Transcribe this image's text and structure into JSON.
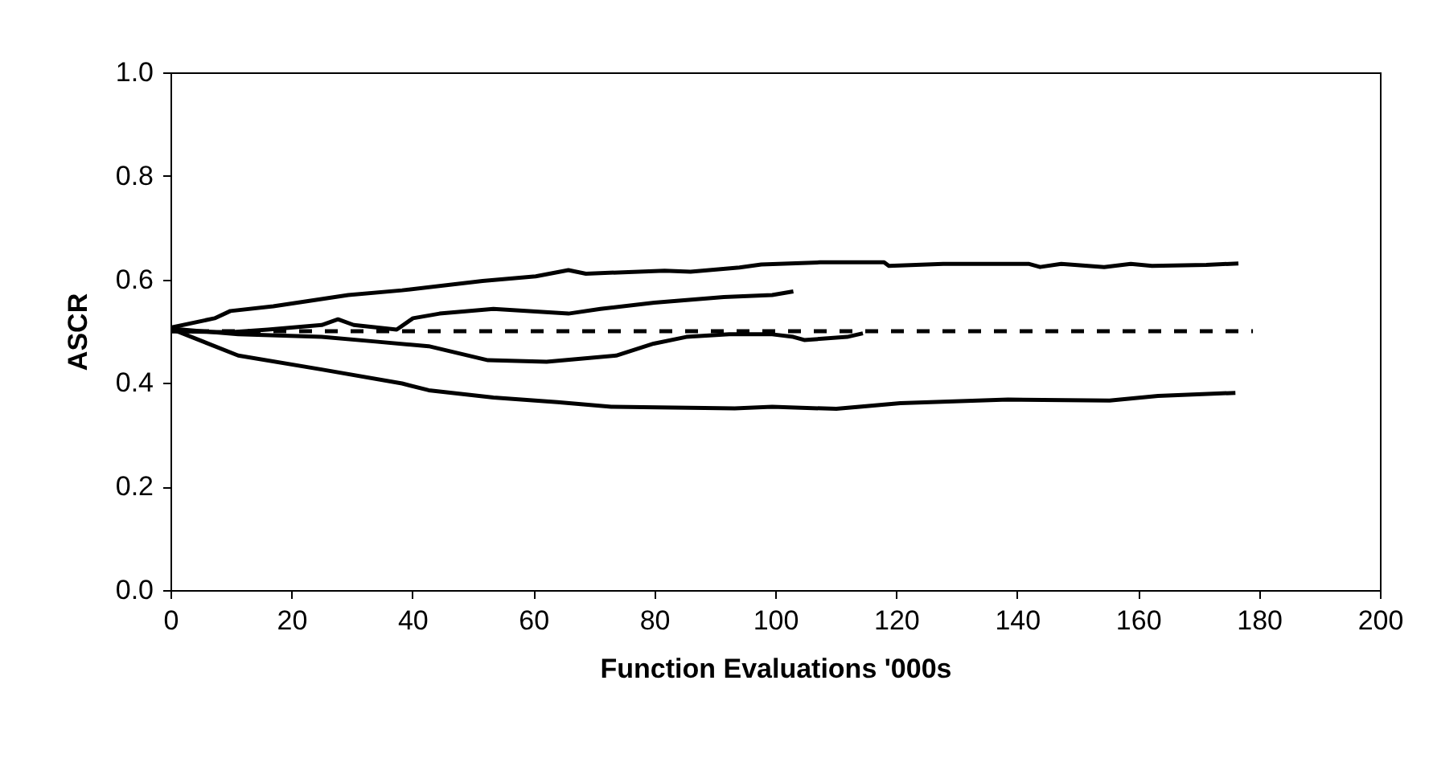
{
  "chart_data": {
    "type": "line",
    "xlabel": "Function Evaluations '000s",
    "ylabel": "ASCR",
    "xlim": [
      0,
      200
    ],
    "xticks": [
      0,
      20,
      40,
      60,
      80,
      100,
      120,
      140,
      160,
      180,
      200
    ],
    "ylim": [
      0,
      1
    ],
    "yticks": [
      {
        "value": 0,
        "label": "0.0"
      },
      {
        "value": 0.2,
        "label": "0.2"
      },
      {
        "value": 0.4,
        "label": "0.4"
      },
      {
        "value": 0.6,
        "label": "0.6"
      },
      {
        "value": 0.8,
        "label": "0.8"
      },
      {
        "value": 1,
        "label": "1.0"
      }
    ],
    "grid": false,
    "marker": "none",
    "series": [
      {
        "color": "#000000",
        "x": [
          0,
          7.3,
          9.9,
          17,
          29.4,
          38.3,
          51.6,
          60.4,
          65.8,
          68.7,
          81.7,
          86,
          94.1,
          97.7,
          107.4,
          118,
          118.8,
          127.8,
          142,
          143.8,
          147.3,
          154.4,
          158.8,
          162.3,
          171.3,
          176.6
        ],
        "values": [
          0.507,
          0.525,
          0.539,
          0.548,
          0.57,
          0.579,
          0.597,
          0.606,
          0.618,
          0.611,
          0.617,
          0.615,
          0.623,
          0.629,
          0.633,
          0.633,
          0.626,
          0.63,
          0.63,
          0.624,
          0.63,
          0.624,
          0.63,
          0.626,
          0.628,
          0.631
        ]
      },
      {
        "color": "#000000",
        "x": [
          0,
          9.9,
          16.1,
          25,
          27.7,
          30.3,
          37.4,
          40.1,
          44.5,
          53.4,
          65.8,
          71.1,
          80,
          91.5,
          99.5,
          103
        ],
        "values": [
          0.5,
          0.498,
          0.503,
          0.512,
          0.523,
          0.512,
          0.503,
          0.525,
          0.534,
          0.543,
          0.534,
          0.543,
          0.555,
          0.566,
          0.57,
          0.577
        ]
      },
      {
        "color": "#000000",
        "x": [
          0,
          11.2,
          25,
          33.9,
          42.7,
          52.5,
          62.2,
          73.7,
          79.9,
          85.3,
          92.4,
          99.5,
          103,
          104.8,
          111.9,
          114.5
        ],
        "values": [
          0.505,
          0.494,
          0.489,
          0.48,
          0.471,
          0.444,
          0.441,
          0.453,
          0.476,
          0.489,
          0.494,
          0.494,
          0.489,
          0.483,
          0.489,
          0.496
        ]
      },
      {
        "color": "#000000",
        "x": [
          0,
          11.2,
          25,
          38.3,
          42.7,
          53.4,
          64,
          72.9,
          93.3,
          99.5,
          110.1,
          120.7,
          138.5,
          155.3,
          163.3,
          176.1
        ],
        "values": [
          0.505,
          0.453,
          0.426,
          0.399,
          0.386,
          0.372,
          0.363,
          0.354,
          0.351,
          0.354,
          0.35,
          0.361,
          0.368,
          0.366,
          0.375,
          0.381
        ]
      },
      {
        "color": "#000000",
        "line_style": "dashed",
        "x": [
          0,
          179
        ],
        "values": [
          0.5,
          0.5
        ]
      }
    ]
  }
}
